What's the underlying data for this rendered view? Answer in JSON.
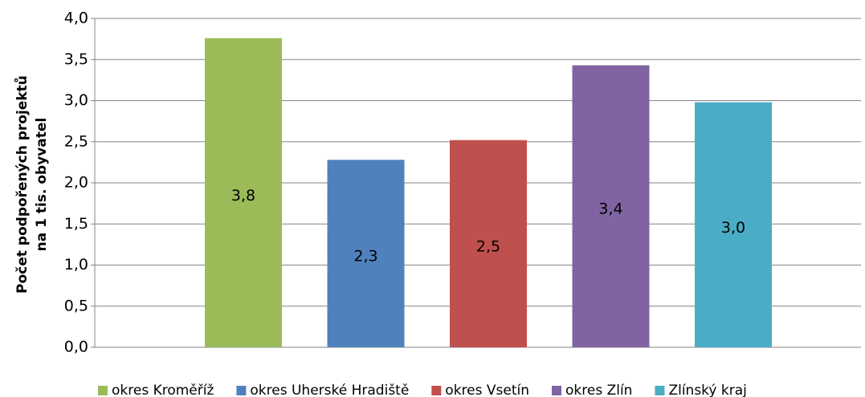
{
  "chart_data": {
    "type": "bar",
    "y_label": [
      "Počet podpořených projektů",
      "na 1 tis. obyvatel"
    ],
    "categories": [
      null
    ],
    "series": [
      {
        "name": "okres Kroměříž",
        "color": "#9bbb59",
        "values": [
          3.76
        ],
        "value_labels": [
          "3,8"
        ]
      },
      {
        "name": "okres Uherské Hradiště",
        "color": "#4f81bd",
        "values": [
          2.28
        ],
        "value_labels": [
          "2,3"
        ]
      },
      {
        "name": "okres Vsetín",
        "color": "#c0504d",
        "values": [
          2.52
        ],
        "value_labels": [
          "2,5"
        ]
      },
      {
        "name": "okres Zlín",
        "color": "#8064a2",
        "values": [
          3.43
        ],
        "value_labels": [
          "3,4"
        ]
      },
      {
        "name": "Zlínský kraj",
        "color": "#4bacc6",
        "values": [
          2.98
        ],
        "value_labels": [
          "3,0"
        ]
      }
    ],
    "ylim": [
      0,
      4
    ],
    "yticks": [
      {
        "value": 0,
        "label": "0,0"
      },
      {
        "value": 0.5,
        "label": "0,5"
      },
      {
        "value": 1,
        "label": "1,0"
      },
      {
        "value": 1.5,
        "label": "1,5"
      },
      {
        "value": 2,
        "label": "2,0"
      },
      {
        "value": 2.5,
        "label": "2,5"
      },
      {
        "value": 3,
        "label": "3,0"
      },
      {
        "value": 3.5,
        "label": "3,5"
      },
      {
        "value": 4,
        "label": "4,0"
      }
    ],
    "grid": true,
    "legend": "bottom"
  }
}
